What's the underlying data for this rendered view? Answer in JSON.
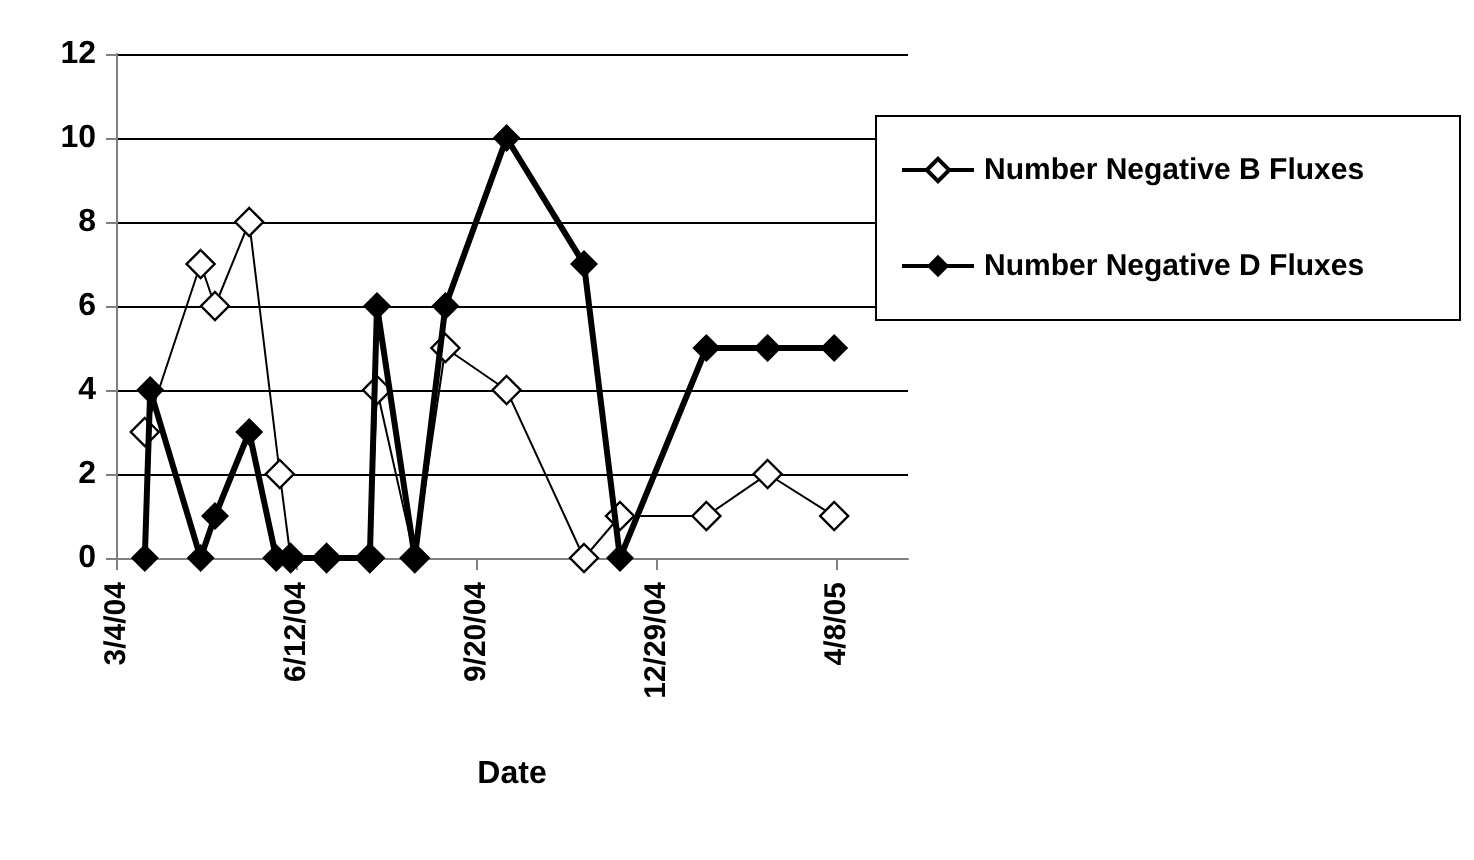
{
  "chart_data": {
    "type": "line",
    "xlabel": "Date",
    "xlim": [
      "2004-03-04",
      "2005-05-18"
    ],
    "xticks": [
      {
        "value": "2004-03-04",
        "label": "3/4/04"
      },
      {
        "value": "2004-06-12",
        "label": "6/12/04"
      },
      {
        "value": "2004-09-20",
        "label": "9/20/04"
      },
      {
        "value": "2004-12-29",
        "label": "12/29/04"
      },
      {
        "value": "2005-04-08",
        "label": "4/8/05"
      }
    ],
    "ylim": [
      0,
      12
    ],
    "yticks": [
      0,
      2,
      4,
      6,
      8,
      10,
      12
    ],
    "grid": "y",
    "legend": "right",
    "marker": "diamond",
    "series": [
      {
        "name": "Number Negative B Fluxes",
        "color": "#ffffff",
        "x": [
          "2004-03-20",
          "2004-04-20",
          "2004-04-28",
          "2004-05-17",
          "2004-06-03",
          "2004-06-09",
          "2004-06-29",
          "2004-07-23",
          "2004-07-27",
          "2004-08-17",
          "2004-09-03",
          "2004-10-07",
          "2004-11-19",
          "2004-12-09",
          "2005-01-26",
          "2005-03-01",
          "2005-04-07"
        ],
        "values": [
          3,
          7,
          6,
          8,
          2,
          0,
          0,
          0,
          4,
          0,
          5,
          4,
          0,
          1,
          1,
          2,
          1
        ]
      },
      {
        "name": "Number Negative D Fluxes",
        "color": "#000000",
        "x": [
          "2004-03-20",
          "2004-03-23",
          "2004-04-20",
          "2004-04-28",
          "2004-05-17",
          "2004-06-01",
          "2004-06-09",
          "2004-06-29",
          "2004-07-23",
          "2004-07-27",
          "2004-08-17",
          "2004-09-03",
          "2004-10-07",
          "2004-11-19",
          "2004-12-09",
          "2005-01-26",
          "2005-03-01",
          "2005-04-07"
        ],
        "values": [
          0,
          4,
          0,
          1,
          3,
          0,
          0,
          0,
          0,
          6,
          0,
          6,
          10,
          7,
          0,
          5,
          5,
          5
        ]
      }
    ]
  }
}
